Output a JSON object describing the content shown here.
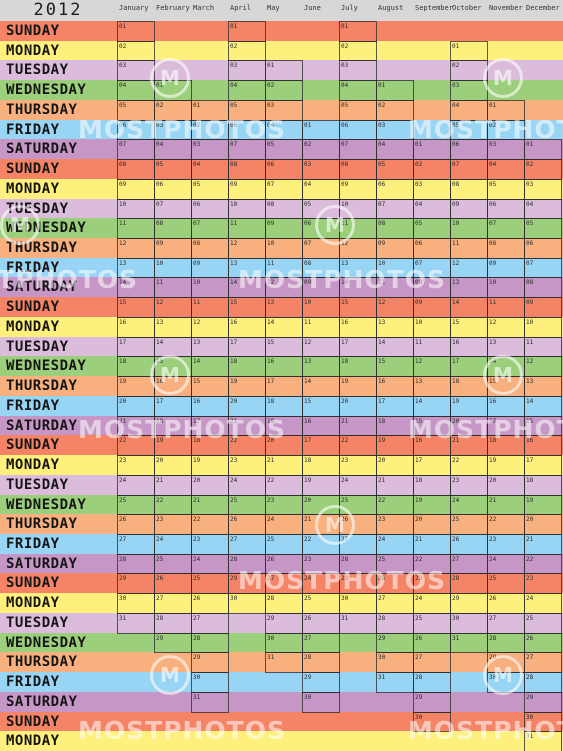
{
  "calendar": {
    "year": "2012",
    "months": [
      {
        "name": "January",
        "first_weekday": 0,
        "days": 31
      },
      {
        "name": "February",
        "first_weekday": 3,
        "days": 29
      },
      {
        "name": "March",
        "first_weekday": 4,
        "days": 31
      },
      {
        "name": "April",
        "first_weekday": 0,
        "days": 30
      },
      {
        "name": "May",
        "first_weekday": 2,
        "days": 31
      },
      {
        "name": "June",
        "first_weekday": 5,
        "days": 30
      },
      {
        "name": "July",
        "first_weekday": 0,
        "days": 31
      },
      {
        "name": "August",
        "first_weekday": 3,
        "days": 31
      },
      {
        "name": "September",
        "first_weekday": 6,
        "days": 30
      },
      {
        "name": "October",
        "first_weekday": 1,
        "days": 31
      },
      {
        "name": "November",
        "first_weekday": 4,
        "days": 30
      },
      {
        "name": "December",
        "first_weekday": 6,
        "days": 31
      }
    ],
    "weekdays": [
      "SUNDAY",
      "MONDAY",
      "TUESDAY",
      "WEDNESDAY",
      "THURSDAY",
      "FRIDAY",
      "SATURDAY"
    ],
    "weekday_colors": [
      "#f58466",
      "#fdf07c",
      "#dcbcdc",
      "#9ccf7c",
      "#f8b07e",
      "#98d4f4",
      "#c696c6"
    ]
  },
  "watermark": {
    "text": "MOSTPHOTOS",
    "logo_glyph": "M"
  }
}
